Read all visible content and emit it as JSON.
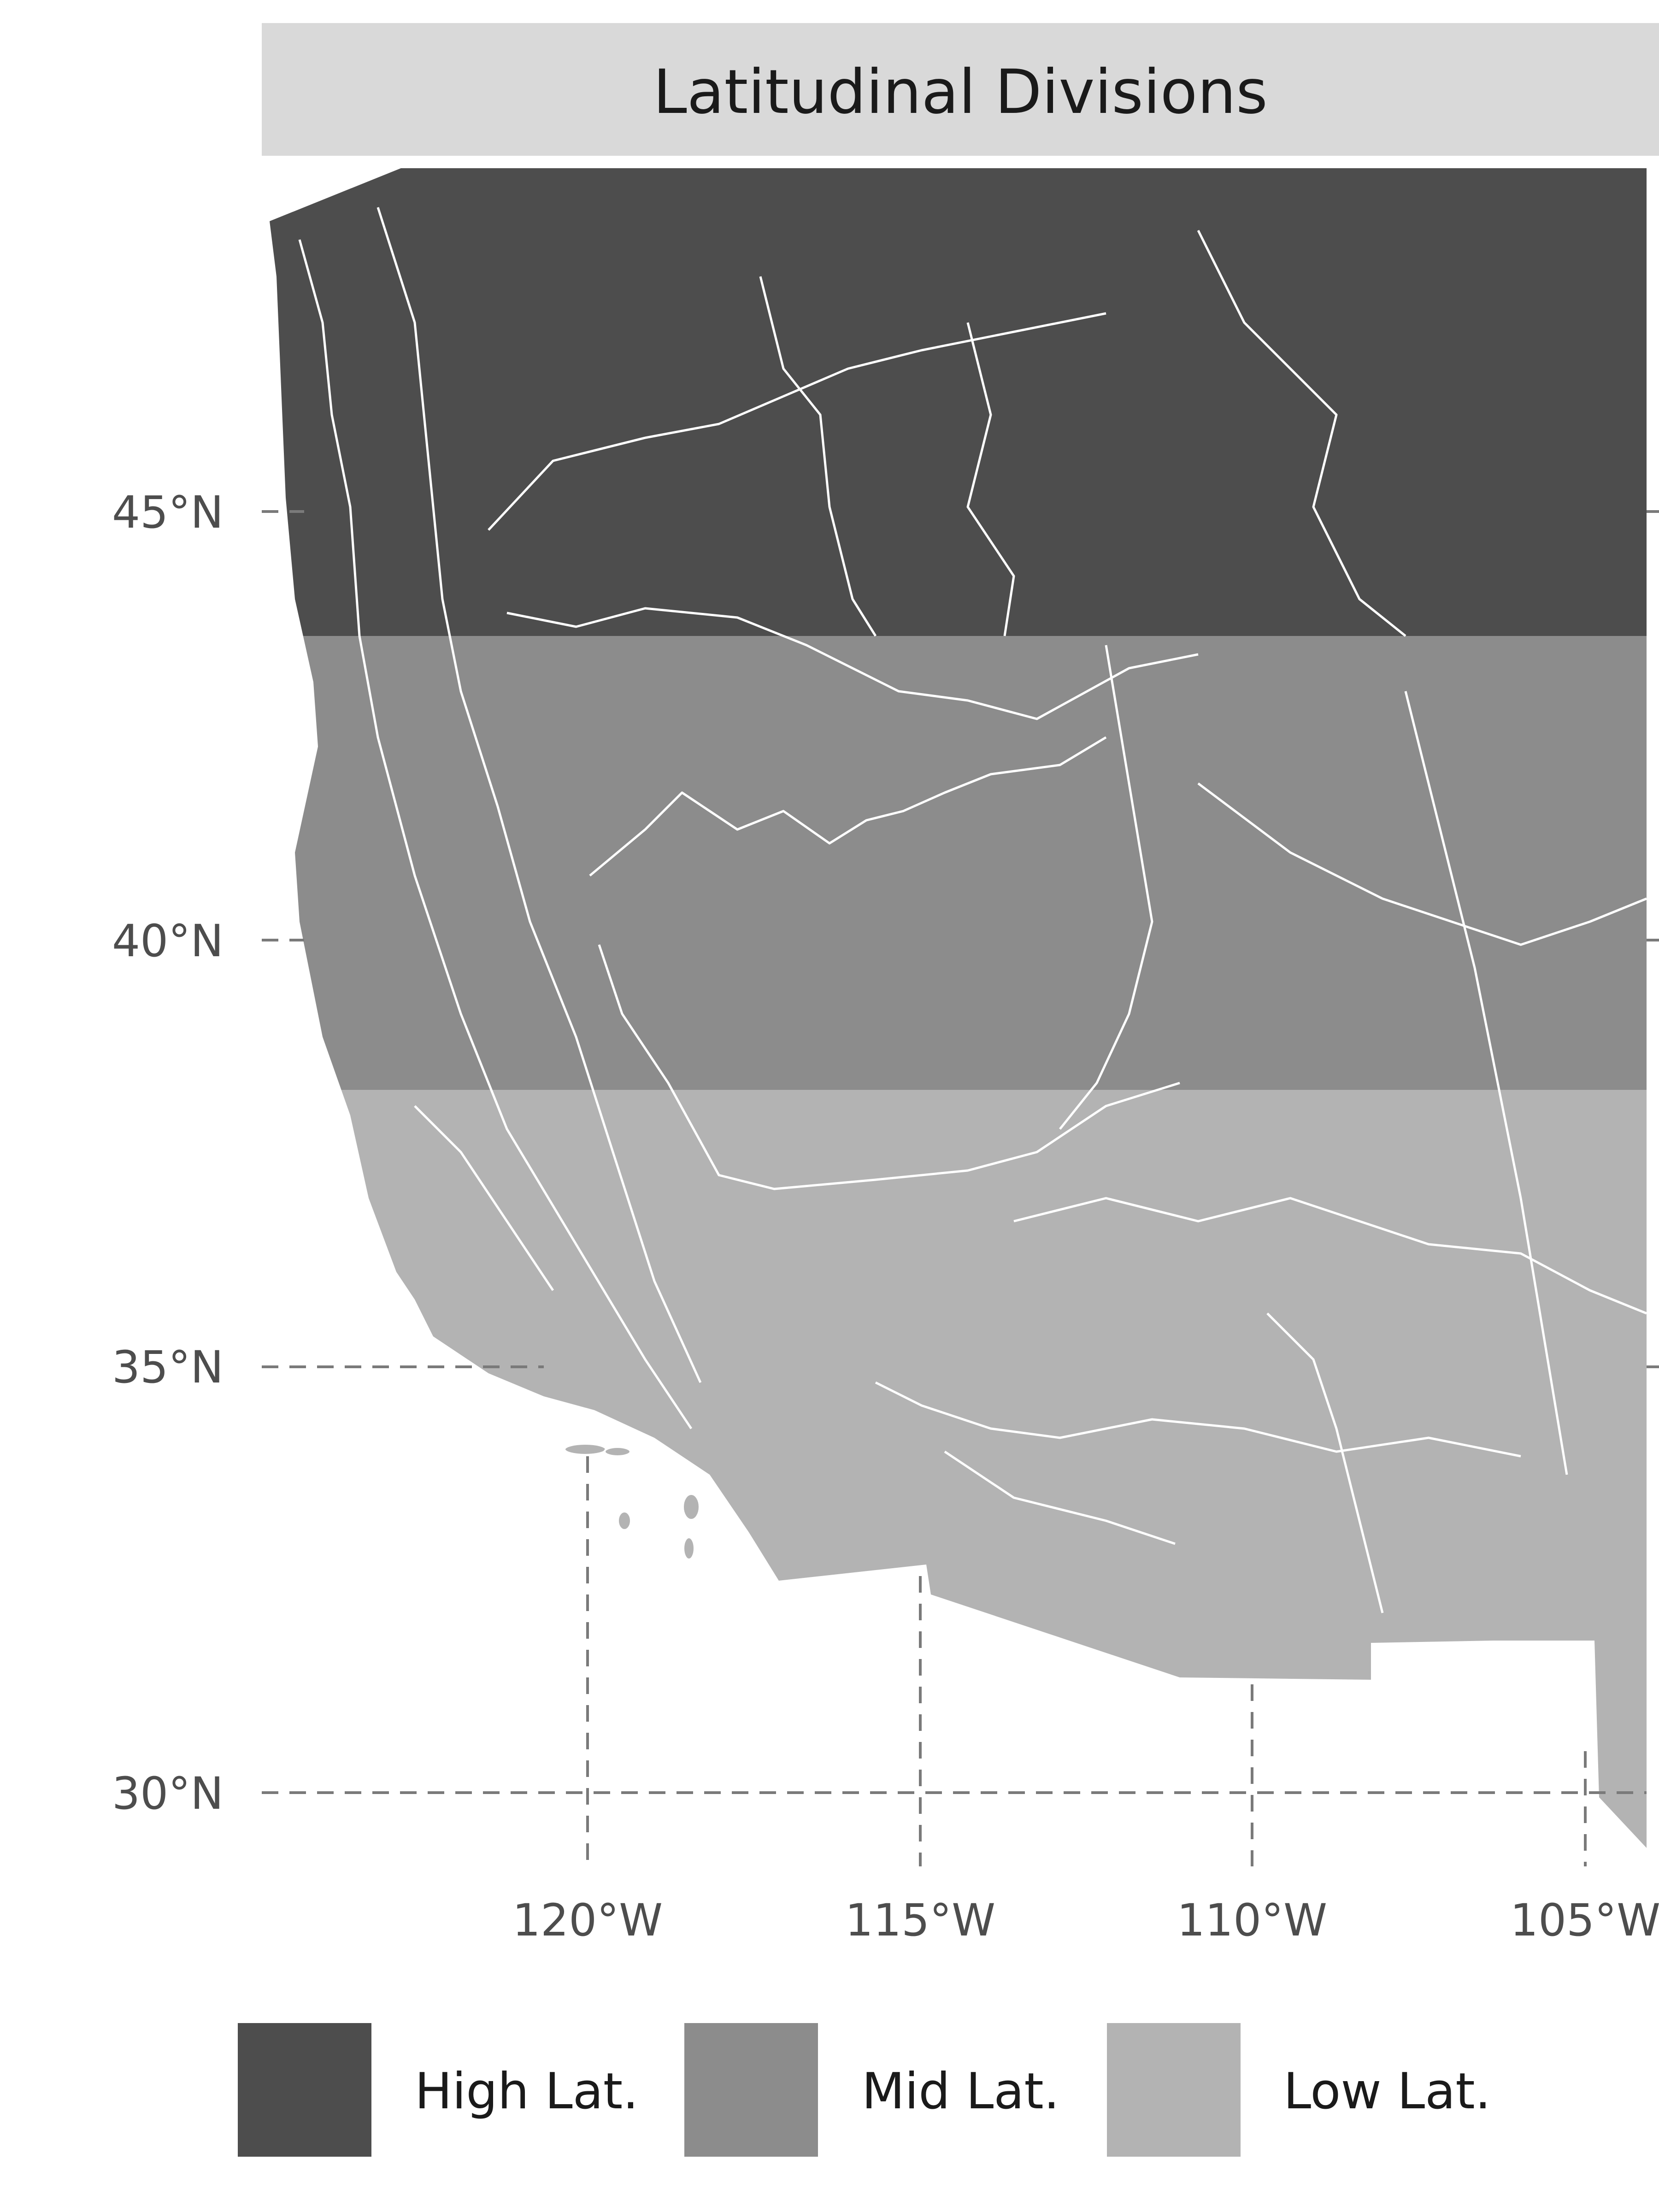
{
  "panel": {
    "title": "Latitudinal Divisions"
  },
  "axes": {
    "lat_ticks": [
      "45°N",
      "40°N",
      "35°N",
      "30°N"
    ],
    "lon_ticks": [
      "120°W",
      "115°W",
      "110°W",
      "105°W"
    ]
  },
  "legend": {
    "items": [
      {
        "label": "High Lat.",
        "color": "#4d4d4d"
      },
      {
        "label": "Mid Lat.",
        "color": "#8c8c8c"
      },
      {
        "label": "Low Lat.",
        "color": "#b3b3b3"
      }
    ]
  },
  "colors": {
    "high": "#4d4d4d",
    "mid": "#8c8c8c",
    "low": "#b3b3b3",
    "strip": "#d9d9d9",
    "grid": "#7a7a7a",
    "boundary": "#ffffff"
  },
  "map": {
    "region": "Western United States",
    "bands": [
      {
        "label": "High Lat.",
        "lat_min": 43.6,
        "lat_max": 49
      },
      {
        "label": "Mid Lat.",
        "lat_min": 38.3,
        "lat_max": 43.6
      },
      {
        "label": "Low Lat.",
        "lat_min": 31.3,
        "lat_max": 38.3
      }
    ]
  }
}
